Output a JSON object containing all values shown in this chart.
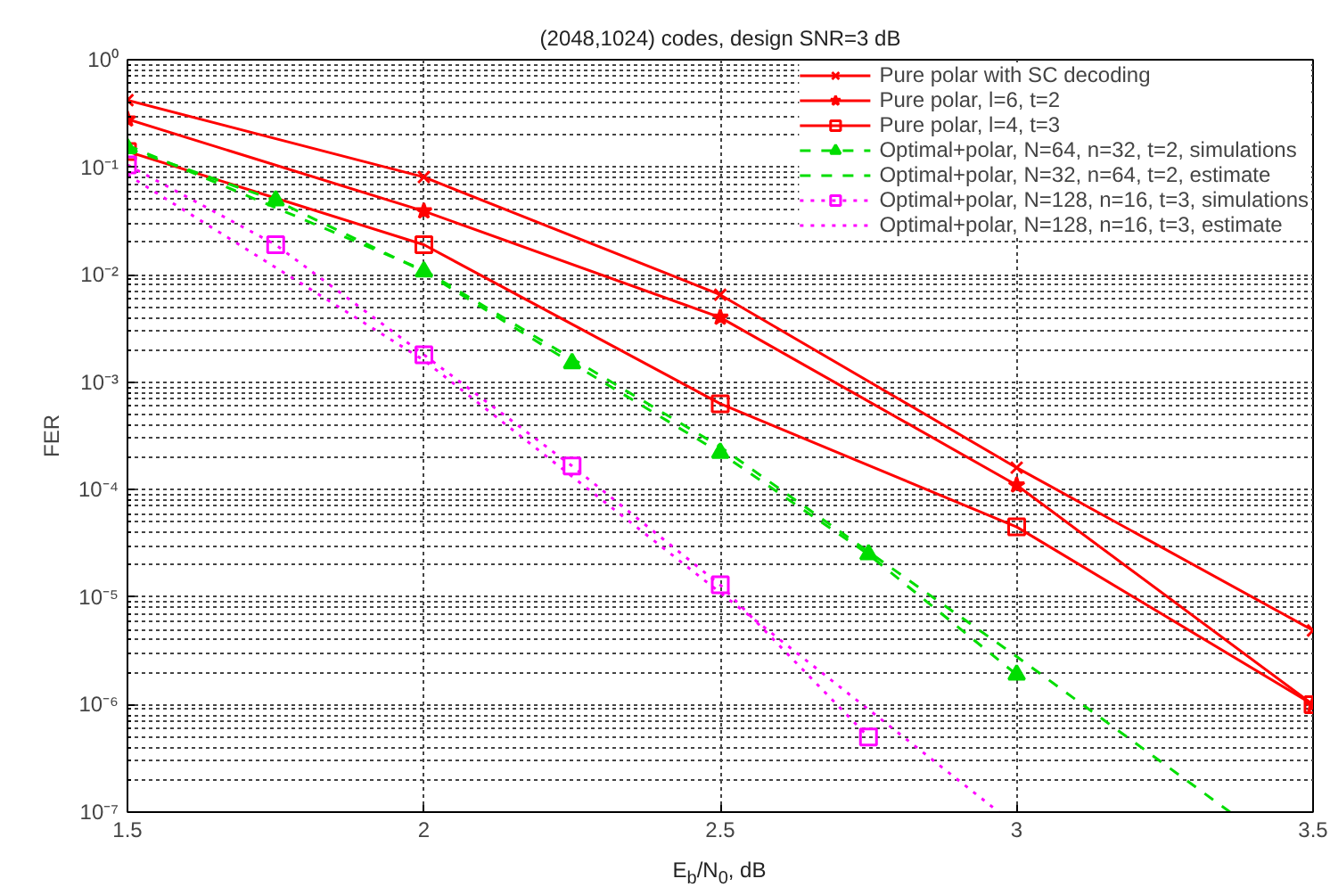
{
  "chart_data": {
    "type": "line",
    "title": "(2048,1024) codes, design SNR=3 dB",
    "xlabel": "E$_{b}$/N$_{0}$, dB",
    "ylabel": "FER",
    "log": "y",
    "grid": true,
    "legend": "top right",
    "xlim": [
      1.5,
      3.5
    ],
    "xticks": [
      1.5,
      2,
      2.5,
      3,
      3.5
    ],
    "ylim": [
      1e-07,
      1
    ],
    "yticks": [
      {
        "value": 1e-07,
        "label": "10⁻⁷"
      },
      {
        "value": 1e-06,
        "label": "10⁻⁶"
      },
      {
        "value": 1e-05,
        "label": "10⁻⁵"
      },
      {
        "value": 0.0001,
        "label": "10⁻⁴"
      },
      {
        "value": 0.001,
        "label": "10⁻³"
      },
      {
        "value": 0.01,
        "label": "10⁻²"
      },
      {
        "value": 0.1,
        "label": "10⁻¹"
      },
      {
        "value": 1,
        "label": "10⁰"
      }
    ],
    "series": [
      {
        "name": "Pure polar with SC decoding",
        "color": "#ff0000",
        "marker": "cross",
        "line_style": "solid",
        "x": [
          1.5,
          2,
          2.5,
          3,
          3.5
        ],
        "values": [
          0.42,
          0.081,
          0.0065,
          0.00016,
          4.9e-06
        ]
      },
      {
        "name": "Pure polar, l=6, t=2",
        "color": "#ff0000",
        "marker": "star",
        "line_style": "solid",
        "x": [
          1.5,
          2,
          2.5,
          3,
          3.5
        ],
        "values": [
          0.28,
          0.039,
          0.004,
          0.00011,
          1e-06
        ]
      },
      {
        "name": "Pure polar, l=4, t=3",
        "color": "#ff0000",
        "marker": "square",
        "line_style": "solid",
        "x": [
          1.5,
          2,
          2.5,
          3,
          3.5
        ],
        "values": [
          0.14,
          0.019,
          0.00063,
          4.5e-05,
          1e-06
        ]
      },
      {
        "name": "Optimal+polar, N=64, n=32, t=2, simulations",
        "color": "#00dd00",
        "marker": "triangle",
        "line_style": "dashed",
        "x": [
          1.5,
          1.75,
          2,
          2.25,
          2.5,
          2.75,
          3
        ],
        "values": [
          0.15,
          0.049,
          0.0107,
          0.0015,
          0.00022,
          2.5e-05,
          1.9e-06
        ]
      },
      {
        "name": "Optimal+polar, N=32, n=64, t=2, estimate",
        "color": "#00dd00",
        "marker": "none",
        "line_style": "dashed",
        "x": [
          1.5,
          2,
          2.5,
          3,
          3.36
        ],
        "values": [
          0.16,
          0.011,
          0.00025,
          2.8e-06,
          1e-07
        ]
      },
      {
        "name": "Optimal+polar, N=128, n=16, t=3, simulations",
        "color": "#ff00ff",
        "marker": "square",
        "line_style": "dotted",
        "x": [
          1.5,
          1.75,
          2,
          2.25,
          2.5,
          2.75
        ],
        "values": [
          0.105,
          0.019,
          0.0018,
          0.000166,
          1.3e-05,
          5e-07
        ]
      },
      {
        "name": "Optimal+polar, N=128, n=16, t=3, estimate",
        "color": "#ff00ff",
        "marker": "none",
        "line_style": "dotted",
        "x": [
          1.5,
          2,
          2.5,
          2.97
        ],
        "values": [
          0.085,
          0.0016,
          1.1e-05,
          1e-07
        ]
      }
    ]
  }
}
